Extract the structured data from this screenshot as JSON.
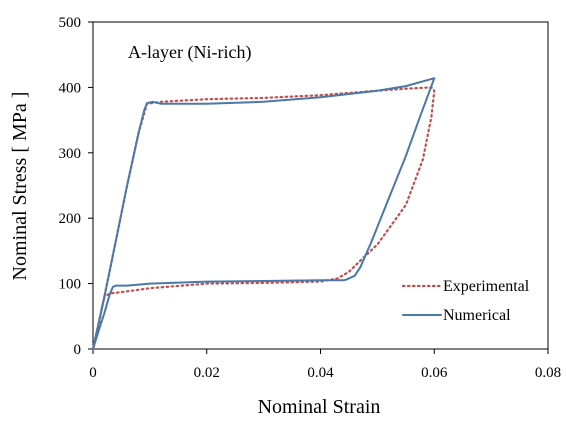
{
  "chart_data": {
    "type": "line",
    "annotation": "A-layer (Ni-rich)",
    "xlabel": "Nominal Strain",
    "ylabel": "Nominal Stress [ MPa ]",
    "xlim": [
      0,
      0.08
    ],
    "ylim": [
      0,
      500
    ],
    "xticks": [
      0,
      0.02,
      0.04,
      0.06,
      0.08
    ],
    "xtick_labels": [
      "0",
      "0.02",
      "0.04",
      "0.06",
      "0.08"
    ],
    "yticks": [
      0,
      100,
      200,
      300,
      400,
      500
    ],
    "ytick_labels": [
      "0",
      "100",
      "200",
      "300",
      "400",
      "500"
    ],
    "grid": false,
    "legend_position": "bottom-right",
    "series": [
      {
        "name": "Experimental",
        "color": "#c0504d",
        "style": "dotted",
        "x": [
          0,
          0.002,
          0.004,
          0.006,
          0.008,
          0.0095,
          0.012,
          0.02,
          0.03,
          0.04,
          0.05,
          0.055,
          0.0595,
          0.06,
          0.0595,
          0.058,
          0.055,
          0.05,
          0.047,
          0.045,
          0.043,
          0.04,
          0.03,
          0.02,
          0.01,
          0.005,
          0.003,
          0.002,
          0.0015,
          0.001,
          0.0005,
          0
        ],
        "y": [
          0,
          80,
          165,
          250,
          330,
          375,
          378,
          382,
          384,
          388,
          395,
          398,
          400,
          395,
          355,
          290,
          220,
          160,
          135,
          118,
          108,
          103,
          101,
          100,
          93,
          87,
          85,
          80,
          60,
          35,
          15,
          0
        ]
      },
      {
        "name": "Numerical",
        "color": "#4a78a8",
        "style": "solid",
        "x": [
          0,
          0.002,
          0.004,
          0.006,
          0.008,
          0.009,
          0.0095,
          0.0105,
          0.012,
          0.02,
          0.03,
          0.04,
          0.05,
          0.055,
          0.06,
          0.0575,
          0.055,
          0.052,
          0.049,
          0.047,
          0.046,
          0.0445,
          0.044,
          0.04,
          0.03,
          0.02,
          0.01,
          0.006,
          0.004,
          0.0035,
          0.003,
          0.0025,
          0.002,
          0.001,
          0
        ],
        "y": [
          0,
          80,
          165,
          250,
          330,
          365,
          376,
          378,
          375,
          375,
          378,
          385,
          395,
          402,
          414,
          355,
          295,
          230,
          165,
          125,
          112,
          106,
          105,
          105,
          104,
          103,
          100,
          97,
          97,
          95,
          85,
          70,
          55,
          28,
          0
        ]
      }
    ]
  }
}
